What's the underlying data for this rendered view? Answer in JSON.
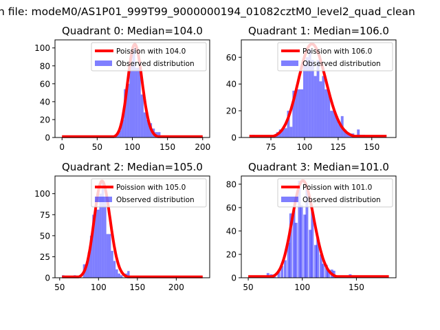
{
  "suptitle": "n file: modeM0/AS1P01_999T99_9000000194_01082cztM0_level2_quad_clean",
  "colors": {
    "curve": "#ff0000",
    "hist": "#0000ff",
    "hist_alpha": 0.5
  },
  "chart_data": [
    {
      "type": "bar",
      "title": "Quadrant 0: Median=104.0",
      "legend": [
        "Poission with 104.0",
        "Observed distribution"
      ],
      "legend_placement": "upper-right",
      "xlim": [
        -10,
        210
      ],
      "ylim": [
        0,
        109
      ],
      "xticks": [
        0,
        50,
        100,
        150,
        200
      ],
      "yticks": [
        0,
        20,
        40,
        60,
        80,
        100
      ],
      "bin_width": 4,
      "bins": [
        [
          52,
          2
        ],
        [
          64,
          2
        ],
        [
          76,
          3
        ],
        [
          80,
          8
        ],
        [
          84,
          20
        ],
        [
          88,
          54
        ],
        [
          92,
          60
        ],
        [
          96,
          80
        ],
        [
          100,
          100
        ],
        [
          104,
          78
        ],
        [
          108,
          78
        ],
        [
          112,
          48
        ],
        [
          116,
          28
        ],
        [
          120,
          20
        ],
        [
          124,
          16
        ],
        [
          128,
          10
        ],
        [
          132,
          6
        ],
        [
          136,
          6
        ],
        [
          160,
          2
        ],
        [
          196,
          1
        ]
      ],
      "poisson": {
        "lambda": 104.0,
        "scale": 2660,
        "x_range": [
          0,
          200
        ]
      }
    },
    {
      "type": "bar",
      "title": "Quadrant 1: Median=106.0",
      "legend": [
        "Poission with 106.0",
        "Observed distribution"
      ],
      "legend_placement": "upper-right",
      "xlim": [
        53,
        168
      ],
      "ylim": [
        0,
        73
      ],
      "xticks": [
        75,
        100,
        125,
        150
      ],
      "yticks": [
        0,
        20,
        40,
        60
      ],
      "bin_width": 2,
      "bins": [
        [
          61,
          2
        ],
        [
          63,
          1
        ],
        [
          77,
          2
        ],
        [
          79,
          4
        ],
        [
          81,
          6
        ],
        [
          83,
          7
        ],
        [
          85,
          7
        ],
        [
          87,
          20
        ],
        [
          89,
          8
        ],
        [
          91,
          35
        ],
        [
          93,
          36
        ],
        [
          95,
          36
        ],
        [
          97,
          36
        ],
        [
          99,
          55
        ],
        [
          101,
          60
        ],
        [
          103,
          66
        ],
        [
          105,
          58
        ],
        [
          107,
          46
        ],
        [
          109,
          58
        ],
        [
          111,
          42
        ],
        [
          113,
          46
        ],
        [
          115,
          36
        ],
        [
          117,
          34
        ],
        [
          119,
          20
        ],
        [
          121,
          20
        ],
        [
          123,
          16
        ],
        [
          125,
          10
        ],
        [
          127,
          16
        ],
        [
          129,
          6
        ],
        [
          131,
          4
        ],
        [
          133,
          3
        ],
        [
          135,
          3
        ],
        [
          139,
          6
        ],
        [
          141,
          2
        ],
        [
          143,
          2
        ],
        [
          155,
          1
        ]
      ],
      "poisson": {
        "lambda": 106.0,
        "scale": 1806,
        "x_range": [
          59,
          161
        ]
      }
    },
    {
      "type": "bar",
      "title": "Quadrant 2: Median=105.0",
      "legend": [
        "Poission with 105.0",
        "Observed distribution"
      ],
      "legend_placement": "upper-right",
      "xlim": [
        44,
        243
      ],
      "ylim": [
        0,
        121
      ],
      "xticks": [
        50,
        100,
        150,
        200
      ],
      "yticks": [
        0,
        25,
        50,
        75,
        100
      ],
      "bin_width": 3,
      "bins": [
        [
          53,
          3
        ],
        [
          68,
          3
        ],
        [
          80,
          16
        ],
        [
          83,
          15
        ],
        [
          86,
          30
        ],
        [
          89,
          50
        ],
        [
          92,
          75
        ],
        [
          95,
          82
        ],
        [
          98,
          81
        ],
        [
          101,
          100
        ],
        [
          104,
          115
        ],
        [
          107,
          90
        ],
        [
          110,
          52
        ],
        [
          113,
          52
        ],
        [
          116,
          32
        ],
        [
          119,
          20
        ],
        [
          122,
          10
        ],
        [
          125,
          5
        ],
        [
          128,
          3
        ],
        [
          134,
          5
        ],
        [
          137,
          8
        ],
        [
          140,
          2
        ],
        [
          143,
          1
        ]
      ],
      "poisson": {
        "lambda": 105.0,
        "scale": 2955,
        "x_range": [
          53,
          234
        ]
      }
    },
    {
      "type": "bar",
      "title": "Quadrant 3: Median=101.0",
      "legend": [
        "Poission with 101.0",
        "Observed distribution"
      ],
      "legend_placement": "upper-right",
      "xlim": [
        43.6,
        186.6
      ],
      "ylim": [
        0,
        87
      ],
      "xticks": [
        50,
        100,
        150
      ],
      "yticks": [
        0,
        20,
        40,
        60,
        80
      ],
      "bin_width": 2.5,
      "bins": [
        [
          63,
          2
        ],
        [
          67,
          4
        ],
        [
          70,
          3
        ],
        [
          73,
          2
        ],
        [
          77,
          5
        ],
        [
          80,
          10
        ],
        [
          83,
          15
        ],
        [
          86,
          30
        ],
        [
          88,
          55
        ],
        [
          91,
          58
        ],
        [
          93,
          47
        ],
        [
          96,
          83
        ],
        [
          98,
          62
        ],
        [
          101,
          54
        ],
        [
          103,
          76
        ],
        [
          106,
          41
        ],
        [
          108,
          57
        ],
        [
          111,
          28
        ],
        [
          113,
          35
        ],
        [
          116,
          20
        ],
        [
          118,
          12
        ],
        [
          121,
          11
        ],
        [
          123,
          6
        ],
        [
          126,
          7
        ],
        [
          128,
          6
        ],
        [
          131,
          2
        ],
        [
          143,
          3
        ]
      ],
      "poisson": {
        "lambda": 101.0,
        "scale": 2091,
        "x_range": [
          50,
          180
        ]
      }
    }
  ]
}
